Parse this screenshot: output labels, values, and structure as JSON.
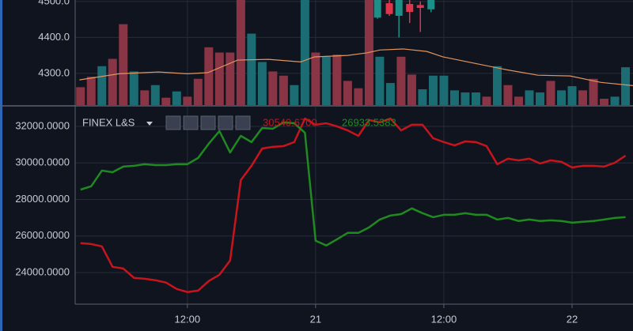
{
  "chart_data": [
    {
      "type": "candlestick",
      "ylim": [
        4212,
        4504
      ],
      "yticks": [
        {
          "value": 4300,
          "label": "4300.0"
        },
        {
          "value": 4400,
          "label": "4400.0"
        },
        {
          "value": 4500,
          "label": "4500.0"
        }
      ],
      "xlim": [
        1.5,
        53.7
      ],
      "grid": true,
      "up_color": "#1b8f88",
      "down_color": "#e0344a",
      "candles": {
        "x": [
          29.8,
          30.9,
          31.8,
          32.8,
          33.8,
          34.8
        ],
        "open": [
          4455,
          4495,
          4460,
          4493,
          4490,
          4478
        ],
        "high": [
          4520,
          4510,
          4520,
          4505,
          4500,
          4520
        ],
        "low": [
          4452,
          4460,
          4400,
          4440,
          4415,
          4470
        ],
        "close": [
          4510,
          4465,
          4510,
          4471,
          4482,
          4510
        ]
      },
      "ma": {
        "color": "#e2955e",
        "x": [
          1.9,
          5.6,
          9.3,
          12,
          13.9,
          16.7,
          19.6,
          22.6,
          23.9,
          27,
          28.8,
          30,
          32.2,
          34.4,
          35.9,
          38.9,
          41.9,
          44.8,
          47.8,
          50.7,
          53.7
        ],
        "values": [
          4282,
          4299,
          4304,
          4299,
          4302,
          4337,
          4339,
          4332,
          4346,
          4350,
          4357,
          4365,
          4368,
          4361,
          4346,
          4328,
          4310,
          4295,
          4293,
          4275,
          4266
        ]
      },
      "volume": {
        "vlim": [
          0,
          100
        ],
        "x": [
          2,
          3,
          4,
          5,
          6,
          7,
          8,
          9,
          10,
          11,
          12,
          13,
          14,
          15,
          16,
          17,
          18,
          19,
          20,
          21,
          22,
          23,
          24,
          25,
          26,
          27,
          28,
          29,
          30,
          31,
          32,
          33,
          34,
          35,
          36,
          37,
          38,
          39,
          40,
          41,
          42,
          43,
          44,
          45,
          46,
          47,
          48,
          49,
          50,
          51,
          52,
          53
        ],
        "values": [
          17,
          27,
          37,
          44,
          77,
          32,
          14,
          19,
          7,
          13,
          8,
          25,
          55,
          50,
          50,
          120,
          68,
          41,
          32,
          28,
          19,
          120,
          50,
          46,
          48,
          23,
          16,
          120,
          46,
          21,
          46,
          29,
          15,
          28,
          28,
          14,
          12,
          12,
          8,
          37,
          19,
          8,
          14,
          12,
          23,
          14,
          18,
          14,
          25,
          6,
          8,
          36
        ],
        "colors": [
          "#8a3545",
          "#8a3545",
          "#1c6c74",
          "#8a3545",
          "#8a3545",
          "#1c6c74",
          "#8a3545",
          "#1c6c74",
          "#8a3545",
          "#1c6c74",
          "#8a3545",
          "#8a3545",
          "#8a3545",
          "#8a3545",
          "#8a3545",
          "#8a3545",
          "#1c6c74",
          "#1c6c74",
          "#8a3545",
          "#8a3545",
          "#1c6c74",
          "#1c6c74",
          "#8a3545",
          "#1c6c74",
          "#8a3545",
          "#8a3545",
          "#8a3545",
          "#8a3545",
          "#1c6c74",
          "#1c6c74",
          "#8a3545",
          "#8a3545",
          "#1c6c74",
          "#1c6c74",
          "#1c6c74",
          "#1c6c74",
          "#1c6c74",
          "#1c6c74",
          "#8a3545",
          "#1c6c74",
          "#8a3545",
          "#8a3545",
          "#1c6c74",
          "#1c6c74",
          "#8a3545",
          "#1c6c74",
          "#1c6c74",
          "#8a3545",
          "#8a3545",
          "#8a3545",
          "#1c6c74",
          "#1c6c74"
        ]
      }
    },
    {
      "type": "line",
      "title": "FINEX L&S",
      "readout": [
        "30540.6700",
        "26933.5383"
      ],
      "xlim": [
        1.5,
        53.7
      ],
      "xticks": [
        {
          "value": 12,
          "label": "12:00"
        },
        {
          "value": 24,
          "label": "21"
        },
        {
          "value": 36,
          "label": "12:00"
        },
        {
          "value": 48,
          "label": "22"
        }
      ],
      "ylim": [
        22270,
        33080
      ],
      "yticks": [
        {
          "value": 24000,
          "label": "24000.0000"
        },
        {
          "value": 26000,
          "label": "26000.0000"
        },
        {
          "value": 28000,
          "label": "28000.0000"
        },
        {
          "value": 30000,
          "label": "30000.0000"
        },
        {
          "value": 32000,
          "label": "32000.0000"
        }
      ],
      "grid": true,
      "x": [
        2,
        3,
        4,
        5,
        6,
        7,
        8,
        9,
        10,
        11,
        12,
        13,
        14,
        15,
        16,
        17,
        18,
        19,
        20,
        21,
        22,
        23,
        24,
        25,
        26,
        27,
        28,
        29,
        30,
        31,
        32,
        33,
        34,
        35,
        36,
        37,
        38,
        39,
        40,
        41,
        42,
        43,
        44,
        45,
        46,
        47,
        48,
        49,
        50,
        51,
        52,
        53
      ],
      "series": [
        {
          "color": "#c8141c",
          "values": [
            25610,
            25560,
            25430,
            24310,
            24220,
            23710,
            23660,
            23580,
            23450,
            23100,
            22930,
            23010,
            23530,
            23880,
            24660,
            29060,
            29840,
            30790,
            30880,
            30920,
            31140,
            32430,
            32090,
            32170,
            32000,
            31780,
            31480,
            32350,
            32220,
            32430,
            31780,
            32090,
            32090,
            31350,
            31140,
            30960,
            31180,
            31140,
            30920,
            29930,
            30230,
            30140,
            30230,
            29970,
            30140,
            30060,
            29750,
            29840,
            29840,
            29800,
            30010,
            30400
          ]
        },
        {
          "color": "#1f8a1f",
          "values": [
            28540,
            28720,
            29580,
            29490,
            29800,
            29840,
            29930,
            29880,
            29880,
            29930,
            29930,
            30270,
            31050,
            31740,
            30570,
            31480,
            31140,
            31910,
            31870,
            32220,
            32170,
            31650,
            25740,
            25480,
            25820,
            26170,
            26170,
            26470,
            26900,
            27120,
            27200,
            27510,
            27250,
            27030,
            27160,
            27160,
            27250,
            27160,
            27160,
            26900,
            26990,
            26820,
            26900,
            26820,
            26860,
            26820,
            26730,
            26780,
            26820,
            26900,
            26990,
            27030
          ]
        }
      ]
    }
  ]
}
